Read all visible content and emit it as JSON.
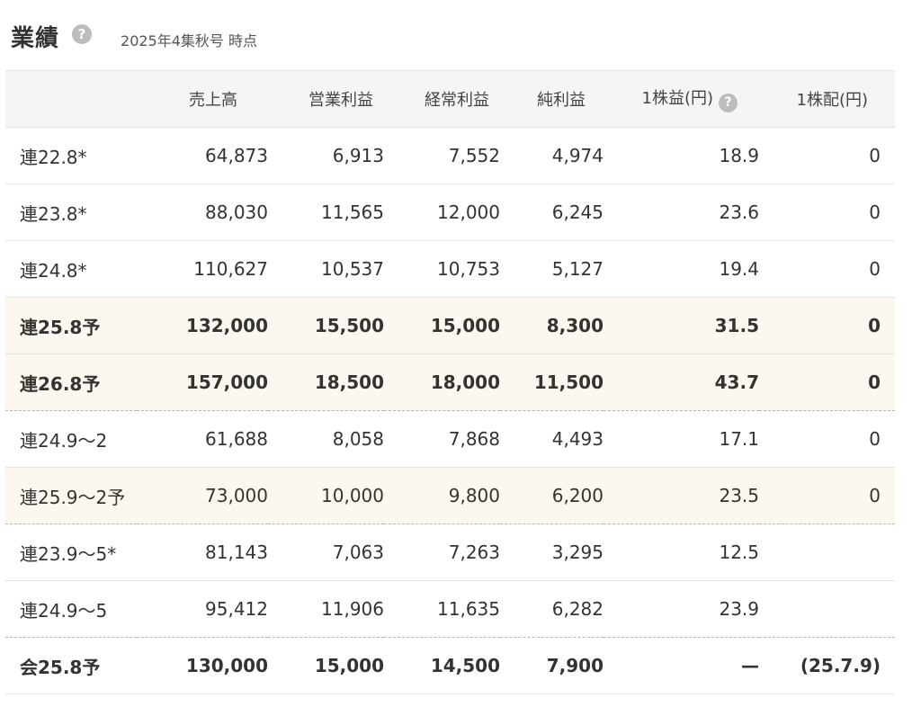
{
  "header": {
    "title": "業績",
    "help_glyph": "?",
    "as_of": "2025年4集秋号 時点"
  },
  "table": {
    "columns": [
      "",
      "売上高",
      "営業利益",
      "経常利益",
      "純利益",
      "1株益(円)",
      "1株配(円)"
    ],
    "eps_help_glyph": "?",
    "rows": [
      {
        "label": "連22.8*",
        "values": [
          "64,873",
          "6,913",
          "7,552",
          "4,974",
          "18.9",
          "0"
        ],
        "forecast": false,
        "bold": false,
        "dashed": false
      },
      {
        "label": "連23.8*",
        "values": [
          "88,030",
          "11,565",
          "12,000",
          "6,245",
          "23.6",
          "0"
        ],
        "forecast": false,
        "bold": false,
        "dashed": false
      },
      {
        "label": "連24.8*",
        "values": [
          "110,627",
          "10,537",
          "10,753",
          "5,127",
          "19.4",
          "0"
        ],
        "forecast": false,
        "bold": false,
        "dashed": false
      },
      {
        "label": "連25.8予",
        "values": [
          "132,000",
          "15,500",
          "15,000",
          "8,300",
          "31.5",
          "0"
        ],
        "forecast": true,
        "bold": true,
        "dashed": false
      },
      {
        "label": "連26.8予",
        "values": [
          "157,000",
          "18,500",
          "18,000",
          "11,500",
          "43.7",
          "0"
        ],
        "forecast": true,
        "bold": true,
        "dashed": true
      },
      {
        "label": "連24.9〜2",
        "values": [
          "61,688",
          "8,058",
          "7,868",
          "4,493",
          "17.1",
          "0"
        ],
        "forecast": false,
        "bold": false,
        "dashed": false
      },
      {
        "label": "連25.9〜2予",
        "values": [
          "73,000",
          "10,000",
          "9,800",
          "6,200",
          "23.5",
          "0"
        ],
        "forecast": true,
        "bold": false,
        "dashed": true
      },
      {
        "label": "連23.9〜5*",
        "values": [
          "81,143",
          "7,063",
          "7,263",
          "3,295",
          "12.5",
          ""
        ],
        "forecast": false,
        "bold": false,
        "dashed": false
      },
      {
        "label": "連24.9〜5",
        "values": [
          "95,412",
          "11,906",
          "11,635",
          "6,282",
          "23.9",
          ""
        ],
        "forecast": false,
        "bold": false,
        "dashed": true
      },
      {
        "label": "会25.8予",
        "values": [
          "130,000",
          "15,000",
          "14,500",
          "7,900",
          "—",
          "(25.7.9)"
        ],
        "forecast": false,
        "bold": true,
        "dashed": false
      }
    ]
  }
}
